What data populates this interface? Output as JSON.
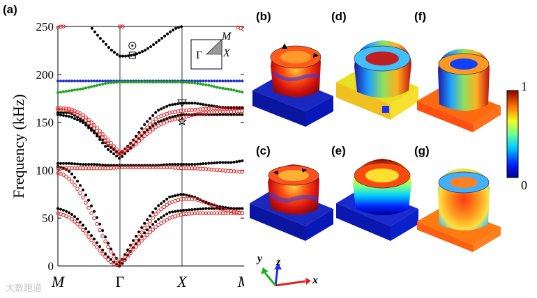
{
  "panels": {
    "a": "(a)",
    "b": "(b)",
    "c": "(c)",
    "d": "(d)",
    "e": "(e)",
    "f": "(f)",
    "g": "(g)"
  },
  "colorbar": {
    "max": "1",
    "min": "0"
  },
  "axes3d": {
    "x": "x",
    "y": "y",
    "z": "z"
  },
  "inset": {
    "gamma": "Γ",
    "m": "M",
    "x": "X"
  },
  "watermark": "大數跑道",
  "chart_data": {
    "type": "scatter",
    "ylabel": "Frequency (kHz)",
    "ylim": [
      0,
      250
    ],
    "yticks": [
      0,
      50,
      100,
      150,
      200,
      250
    ],
    "xticks": [
      "M",
      "Γ",
      "X",
      "M"
    ],
    "colors": {
      "black": "#000000",
      "red": "#e02020",
      "blue": "#1f2fd0",
      "green": "#1ea01e"
    },
    "series": [
      {
        "color": "black",
        "marker": "filled-dot",
        "bands": [
          {
            "x": [
              0,
              0.1,
              0.2,
              0.3,
              0.4,
              0.5,
              0.6,
              0.7,
              0.8,
              0.9,
              1,
              1.2,
              1.4,
              1.6,
              1.8,
              2,
              2.2,
              2.4,
              2.6,
              2.8,
              3
            ],
            "y": [
              60,
              58,
              55,
              50,
              43,
              35,
              27,
              18,
              10,
              4,
              0,
              18,
              35,
              48,
              56,
              58,
              59,
              60,
              60,
              60,
              60
            ]
          },
          {
            "x": [
              0,
              0.1,
              0.2,
              0.3,
              0.4,
              0.5,
              0.6,
              0.7,
              0.8,
              0.9,
              1,
              1.2,
              1.4,
              1.6,
              1.8,
              2,
              2.2,
              2.4,
              2.6,
              2.8,
              3
            ],
            "y": [
              104,
              102,
              98,
              90,
              80,
              68,
              55,
              40,
              25,
              12,
              3,
              25,
              45,
              62,
              72,
              75,
              72,
              66,
              62,
              60,
              60
            ]
          },
          {
            "x": [
              0,
              0.2,
              0.4,
              0.6,
              0.8,
              1,
              1.2,
              1.4,
              1.6,
              1.8,
              2,
              2.2,
              2.4,
              2.6,
              2.8,
              3
            ],
            "y": [
              107,
              107,
              106,
              106,
              105,
              105,
              105,
              105,
              105,
              106,
              106,
              106,
              107,
              108,
              108,
              110
            ]
          },
          {
            "x": [
              0,
              0.2,
              0.4,
              0.6,
              0.8,
              1,
              1.2,
              1.4,
              1.6,
              1.8,
              2,
              2.2,
              2.4,
              2.6,
              2.8,
              3
            ],
            "y": [
              158,
              156,
              150,
              138,
              122,
              112,
              125,
              140,
              150,
              155,
              158,
              158,
              158,
              158,
              158,
              158
            ]
          },
          {
            "x": [
              0,
              0.2,
              0.4,
              0.6,
              0.8,
              1,
              1.2,
              1.4,
              1.6,
              1.8,
              2,
              2.2,
              2.4,
              2.6,
              2.8,
              3
            ],
            "y": [
              160,
              160,
              152,
              140,
              126,
              117,
              130,
              148,
              162,
              168,
              170,
              170,
              168,
              166,
              165,
              165
            ]
          },
          {
            "x": [
              1,
              1.1,
              1.2,
              1.3,
              1.4,
              1.5,
              1.6,
              1.7,
              1.8,
              1.9,
              2
            ],
            "y": [
              219,
              219,
              220,
              222,
              225,
              229,
              234,
              239,
              244,
              248,
              250
            ]
          },
          {
            "x": [
              0.55,
              0.65,
              0.75,
              0.85,
              0.95,
              1
            ],
            "y": [
              248,
              240,
              233,
              226,
              221,
              219
            ]
          }
        ]
      },
      {
        "color": "red",
        "marker": "open-circle",
        "bands": [
          {
            "x": [
              0,
              0.1,
              0.2,
              0.3,
              0.4,
              0.5,
              0.6,
              0.7,
              0.8,
              0.9,
              1,
              1.2,
              1.4,
              1.6,
              1.8,
              2,
              2.2,
              2.4,
              2.6,
              2.8,
              3
            ],
            "y": [
              55,
              53,
              50,
              45,
              38,
              30,
              22,
              14,
              7,
              2,
              0,
              16,
              30,
              42,
              50,
              54,
              55,
              55,
              55,
              55,
              55
            ]
          },
          {
            "x": [
              0,
              0.1,
              0.2,
              0.3,
              0.4,
              0.5,
              0.6,
              0.7,
              0.8,
              0.9,
              1,
              1.2,
              1.4,
              1.6,
              1.8,
              2,
              2.2,
              2.4,
              2.6,
              2.8,
              3
            ],
            "y": [
              97,
              95,
              90,
              82,
              72,
              60,
              48,
              34,
              21,
              10,
              2,
              20,
              40,
              56,
              66,
              70,
              70,
              66,
              60,
              57,
              55
            ]
          },
          {
            "x": [
              0,
              0.2,
              0.4,
              0.6,
              0.8,
              1,
              1.2,
              1.4,
              1.6,
              1.8,
              2,
              2.2,
              2.4,
              2.6,
              2.8,
              3
            ],
            "y": [
              102,
              102,
              102,
              102,
              102,
              103,
              103,
              103,
              103,
              103,
              102,
              102,
              101,
              100,
              99,
              98
            ]
          },
          {
            "x": [
              0,
              0.2,
              0.4,
              0.6,
              0.8,
              1,
              1.2,
              1.4,
              1.6,
              1.8,
              2,
              2.2,
              2.4,
              2.6,
              2.8,
              3
            ],
            "y": [
              163,
              162,
              155,
              143,
              128,
              116,
              128,
              142,
              155,
              160,
              162,
              163,
              164,
              165,
              165,
              165
            ]
          },
          {
            "x": [
              0,
              0.2,
              0.4,
              0.6,
              0.8,
              1,
              1.2,
              1.4,
              1.6,
              1.8,
              2,
              2.2,
              2.4,
              2.6,
              2.8,
              3
            ],
            "y": [
              165,
              164,
              158,
              146,
              132,
              118,
              124,
              136,
              146,
              152,
              155,
              158,
              160,
              161,
              161,
              162
            ]
          },
          {
            "x": [
              0,
              0.05,
              0.1
            ],
            "y": [
              249,
              250,
              250
            ]
          },
          {
            "x": [
              1,
              1.05
            ],
            "y": [
              250,
              250
            ]
          },
          {
            "x": [
              2.9,
              2.95,
              3
            ],
            "y": [
              249,
              248,
              247
            ]
          }
        ]
      },
      {
        "color": "blue",
        "marker": "filled-dot",
        "bands": [
          {
            "x": [
              0,
              0.2,
              0.4,
              0.6,
              0.8,
              1,
              1.2,
              1.4,
              1.6,
              1.8,
              2,
              2.2,
              2.4,
              2.6,
              2.8,
              3
            ],
            "y": [
              193,
              193,
              193,
              193,
              193,
              193,
              193,
              193,
              193,
              193,
              193,
              193,
              193,
              193,
              193,
              193
            ]
          }
        ]
      },
      {
        "color": "green",
        "marker": "filled-dot",
        "bands": [
          {
            "x": [
              0,
              0.2,
              0.4,
              0.6,
              0.8,
              1,
              1.2,
              1.4,
              1.6,
              1.8,
              2,
              2.2,
              2.4,
              2.6,
              2.8,
              3
            ],
            "y": [
              181,
              183,
              185,
              188,
              191,
              192,
              192,
              192,
              192,
              192,
              192,
              191,
              189,
              186,
              184,
              181
            ]
          }
        ]
      }
    ],
    "markers": [
      {
        "shape": "circle-dot",
        "x": 1.2,
        "y": 230
      },
      {
        "shape": "square",
        "x": 1.2,
        "y": 220
      },
      {
        "shape": "down-triangle",
        "x": 2,
        "y": 170
      },
      {
        "shape": "star",
        "x": 2,
        "y": 151
      }
    ]
  }
}
